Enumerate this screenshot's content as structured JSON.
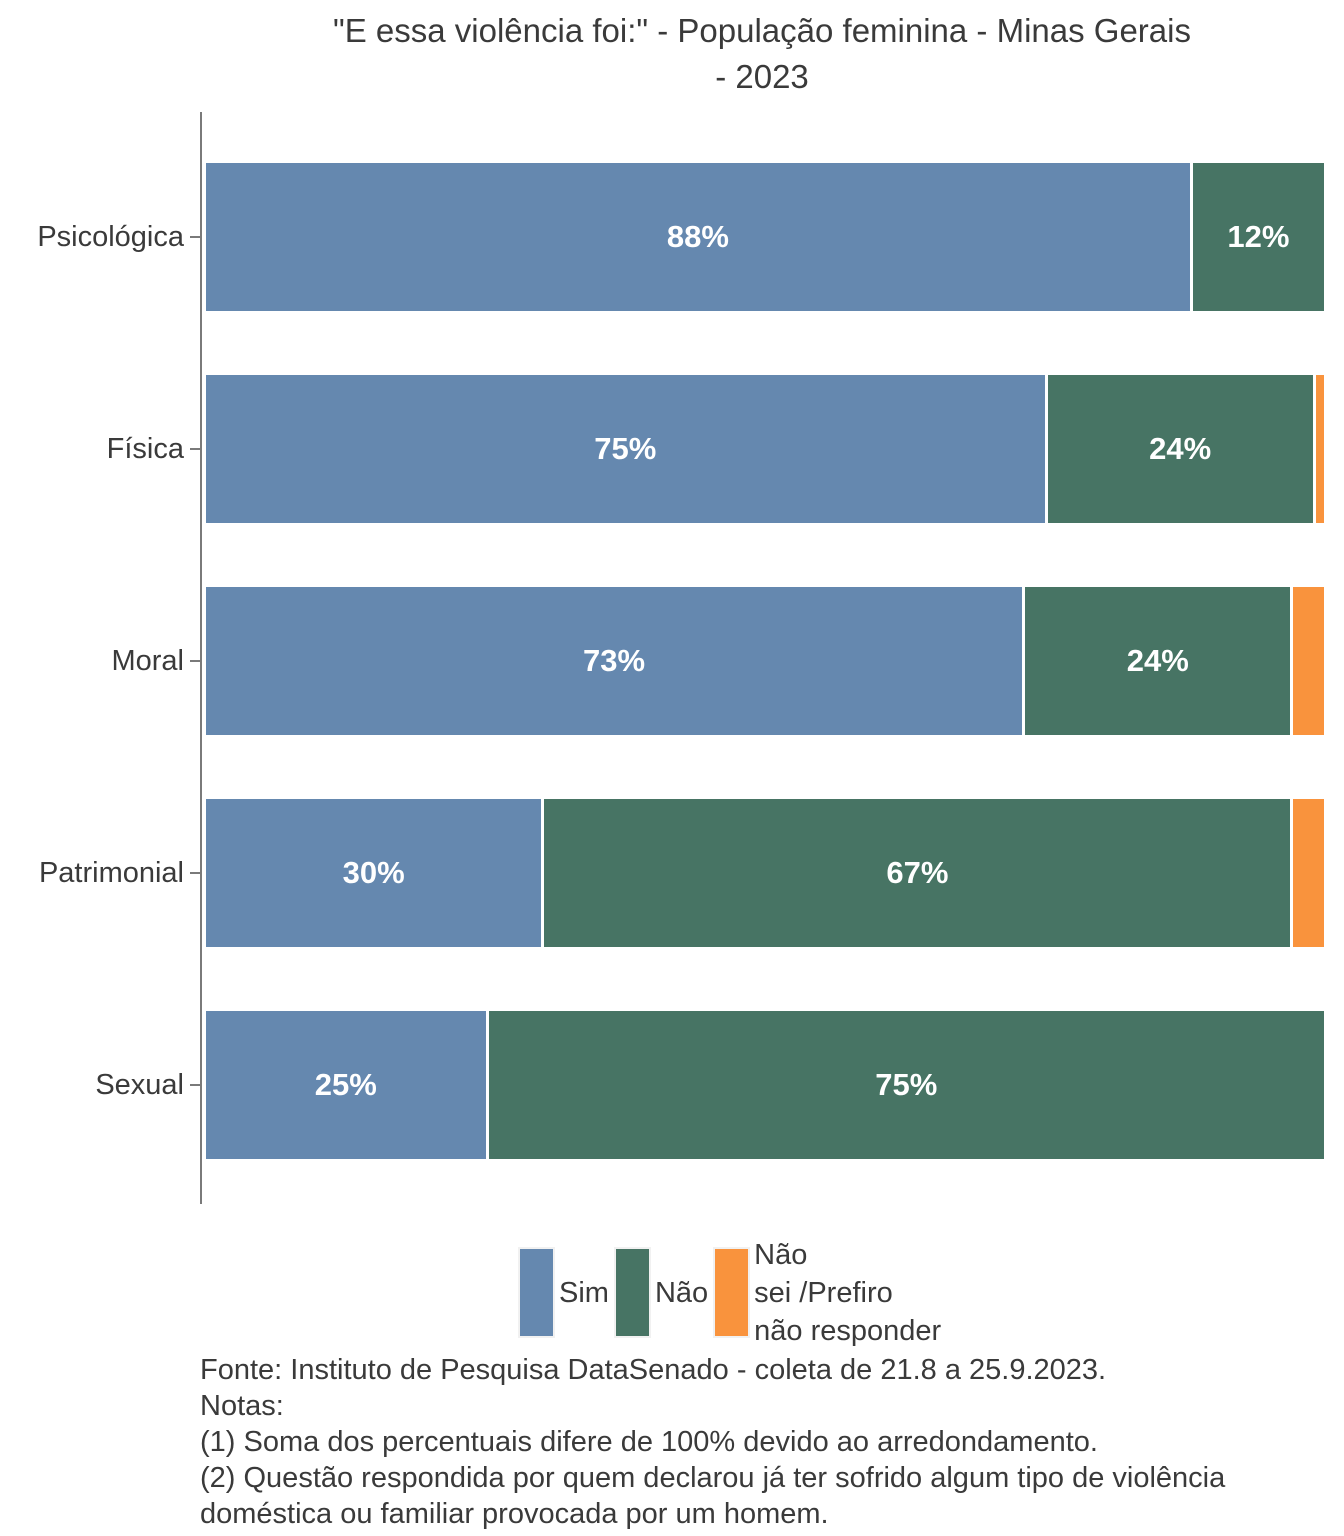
{
  "title": {
    "lines": [
      "\"E essa violência foi:\" - População feminina - Minas Gerais",
      "- 2023"
    ]
  },
  "chart_data": {
    "type": "bar",
    "orientation": "horizontal",
    "stacked": true,
    "title": "\"E essa violência foi:\" - População feminina - Minas Gerais - 2023",
    "categories": [
      "Psicológica",
      "Física",
      "Moral",
      "Patrimonial",
      "Sexual"
    ],
    "series": [
      {
        "name": "Sim",
        "color": "#6588AF",
        "values": [
          88,
          75,
          73,
          30,
          25
        ]
      },
      {
        "name": "Não",
        "color": "#477464",
        "values": [
          12,
          24,
          24,
          67,
          75
        ]
      },
      {
        "name": "Não sei /Prefiro não responder",
        "color": "#F9933D",
        "values": [
          0,
          1,
          3,
          3,
          0
        ]
      }
    ],
    "xlim": [
      0,
      100
    ],
    "value_suffix": "%",
    "bar_label_min_value": 10,
    "grid": false,
    "legend_position": "bottom"
  },
  "legend": {
    "items": [
      {
        "label": "Sim",
        "color": "#6588AF"
      },
      {
        "label": "Não",
        "color": "#477464"
      },
      {
        "label": "Não\nsei /Prefiro\nnão responder",
        "color": "#F9933D"
      }
    ]
  },
  "footer": {
    "lines": [
      "Fonte: Instituto de Pesquisa DataSenado - coleta de 21.8 a 25.9.2023.",
      "Notas:",
      "(1) Soma dos percentuais difere de 100% devido ao arredondamento.",
      "(2) Questão respondida por quem declarou já ter sofrido algum tipo de violência",
      "doméstica ou familiar provocada por um homem."
    ]
  },
  "colors": {
    "sim": "#6588AF",
    "nao": "#477464",
    "nao_sei": "#F9933D",
    "text": "#3A3A3A",
    "axis": "#7A7A7A",
    "bar_label": "#FFFFFF"
  }
}
